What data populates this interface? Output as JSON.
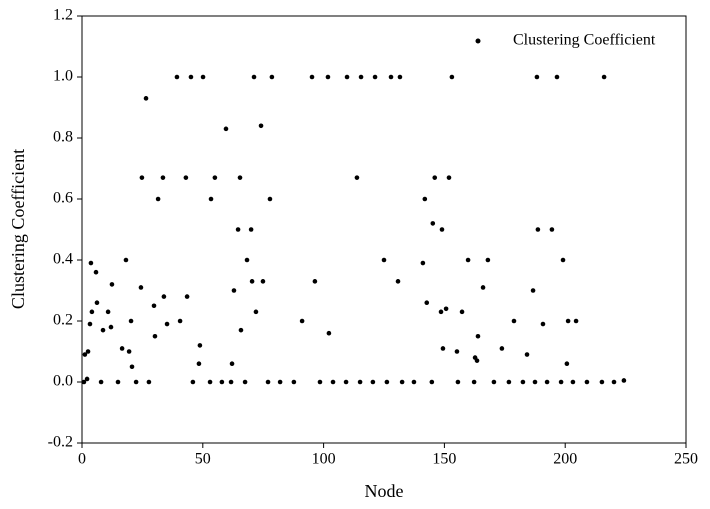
{
  "chart_data": {
    "type": "scatter",
    "x_label": "Node",
    "y_label": "Clustering Coefficient",
    "xlim": [
      0,
      250
    ],
    "ylim": [
      -0.2,
      1.2
    ],
    "xticks": [
      0,
      50,
      100,
      150,
      200,
      250
    ],
    "yticks": [
      -0.2,
      {
        "value": 0,
        "label": "0.0"
      },
      0.2,
      0.4,
      0.6,
      0.8,
      {
        "value": 1,
        "label": "1.0"
      },
      1.2
    ],
    "grid": false,
    "legend": "upper right",
    "series": [
      {
        "name": "Clustering Coefficient",
        "color": "#000000",
        "x": [
          0.8,
          1.2,
          2.1,
          2.5,
          3.3,
          3.7,
          4.1,
          5.8,
          6.2,
          7.9,
          8.7,
          10.8,
          12.0,
          12.4,
          14.9,
          16.6,
          18.2,
          19.5,
          20.3,
          20.7,
          22.4,
          24.4,
          24.8,
          26.5,
          27.7,
          29.8,
          30.2,
          31.5,
          33.5,
          33.9,
          35.2,
          39.3,
          40.6,
          43.0,
          43.5,
          45.1,
          45.9,
          48.4,
          48.8,
          50.1,
          53.0,
          53.4,
          55.0,
          57.9,
          59.6,
          61.7,
          62.1,
          62.9,
          64.6,
          65.4,
          65.8,
          67.5,
          68.3,
          70.0,
          70.4,
          71.2,
          72.0,
          74.1,
          74.9,
          77.0,
          77.8,
          78.6,
          82.0,
          87.7,
          91.1,
          95.2,
          96.4,
          98.5,
          101.8,
          102.2,
          103.9,
          109.3,
          109.7,
          113.8,
          115.1,
          115.5,
          120.4,
          121.3,
          125.0,
          126.2,
          127.9,
          130.8,
          131.6,
          132.5,
          137.4,
          141.1,
          141.9,
          142.7,
          144.8,
          145.2,
          146.0,
          148.6,
          149.0,
          149.4,
          150.7,
          151.9,
          153.1,
          155.2,
          155.6,
          157.3,
          159.8,
          162.3,
          162.7,
          163.5,
          163.9,
          166.0,
          168.0,
          170.5,
          173.8,
          176.7,
          178.8,
          182.5,
          184.2,
          186.7,
          187.5,
          188.3,
          188.7,
          190.8,
          192.5,
          194.5,
          196.6,
          198.3,
          199.1,
          200.7,
          201.2,
          203.2,
          204.5,
          209.0,
          215.2,
          216.1,
          220.2,
          224.3
        ],
        "values": [
          0,
          0.09,
          0.01,
          0.1,
          0.19,
          0.39,
          0.23,
          0.36,
          0.26,
          0,
          0.17,
          0.23,
          0.18,
          0.32,
          0,
          0.11,
          0.4,
          0.1,
          0.2,
          0.05,
          0,
          0.31,
          0.67,
          0.93,
          0,
          0.25,
          0.15,
          0.6,
          0.67,
          0.28,
          0.19,
          1,
          0.2,
          0.67,
          0.28,
          1,
          0,
          0.06,
          0.12,
          1,
          0,
          0.6,
          0.67,
          0,
          0.83,
          0,
          0.06,
          0.3,
          0.5,
          0.67,
          0.17,
          0,
          0.4,
          0.5,
          0.33,
          1,
          0.23,
          0.84,
          0.33,
          0,
          0.6,
          1,
          0,
          0,
          0.2,
          1,
          0.33,
          0,
          1,
          0.16,
          0,
          0,
          1,
          0.67,
          0,
          1,
          0,
          1,
          0.4,
          0,
          1,
          0.33,
          1,
          0,
          0,
          0.39,
          0.6,
          0.26,
          0,
          0.52,
          0.67,
          0.23,
          0.5,
          0.11,
          0.24,
          0.67,
          1,
          0.1,
          0,
          0.23,
          0.4,
          0,
          0.08,
          0.07,
          0.15,
          0.31,
          0.4,
          0,
          0.11,
          0,
          0.2,
          0,
          0.09,
          0.3,
          0,
          1,
          0.5,
          0.19,
          0,
          0.5,
          1,
          0,
          0.4,
          0.06,
          0.2,
          0,
          0.2,
          0,
          0,
          1,
          0,
          0.005
        ]
      }
    ]
  }
}
